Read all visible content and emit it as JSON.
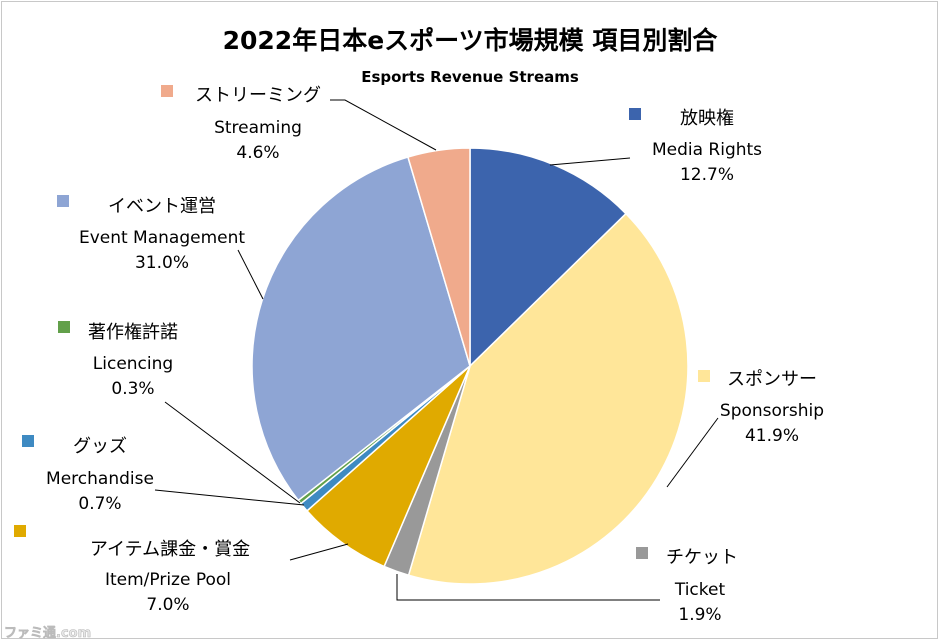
{
  "chart_data": {
    "type": "pie",
    "title": "2022年日本eスポーツ市場規模 項目別割合",
    "subtitle": "Esports Revenue Streams",
    "slices": [
      {
        "jp": "放映権",
        "en": "Media Rights",
        "value": 12.7,
        "display": "12.7%",
        "color": "#3c64ad"
      },
      {
        "jp": "スポンサー",
        "en": "Sponsorship",
        "value": 41.9,
        "display": "41.9%",
        "color": "#ffe699"
      },
      {
        "jp": "チケット",
        "en": "Ticket",
        "value": 1.9,
        "display": "1.9%",
        "color": "#999999"
      },
      {
        "jp": "アイテム課金・賞金",
        "en": "Item/Prize Pool",
        "value": 7.0,
        "display": "7.0%",
        "color": "#e0aa00"
      },
      {
        "jp": "グッズ",
        "en": "Merchandise",
        "value": 0.7,
        "display": "0.7%",
        "color": "#3e8ac2"
      },
      {
        "jp": "著作権許諾",
        "en": "Licencing",
        "value": 0.3,
        "display": "0.3%",
        "color": "#62a04a"
      },
      {
        "jp": "イベント運営",
        "en": "Event Management",
        "value": 31.0,
        "display": "31.0%",
        "color": "#8ea5d4"
      },
      {
        "jp": "ストリーミング",
        "en": "Streaming",
        "value": 4.6,
        "display": "4.6%",
        "color": "#f0aa8c"
      }
    ],
    "start_angle": "12 o'clock",
    "direction": "clockwise",
    "legend": "none (labels beside slices)"
  },
  "watermark": "ファミ通.com"
}
